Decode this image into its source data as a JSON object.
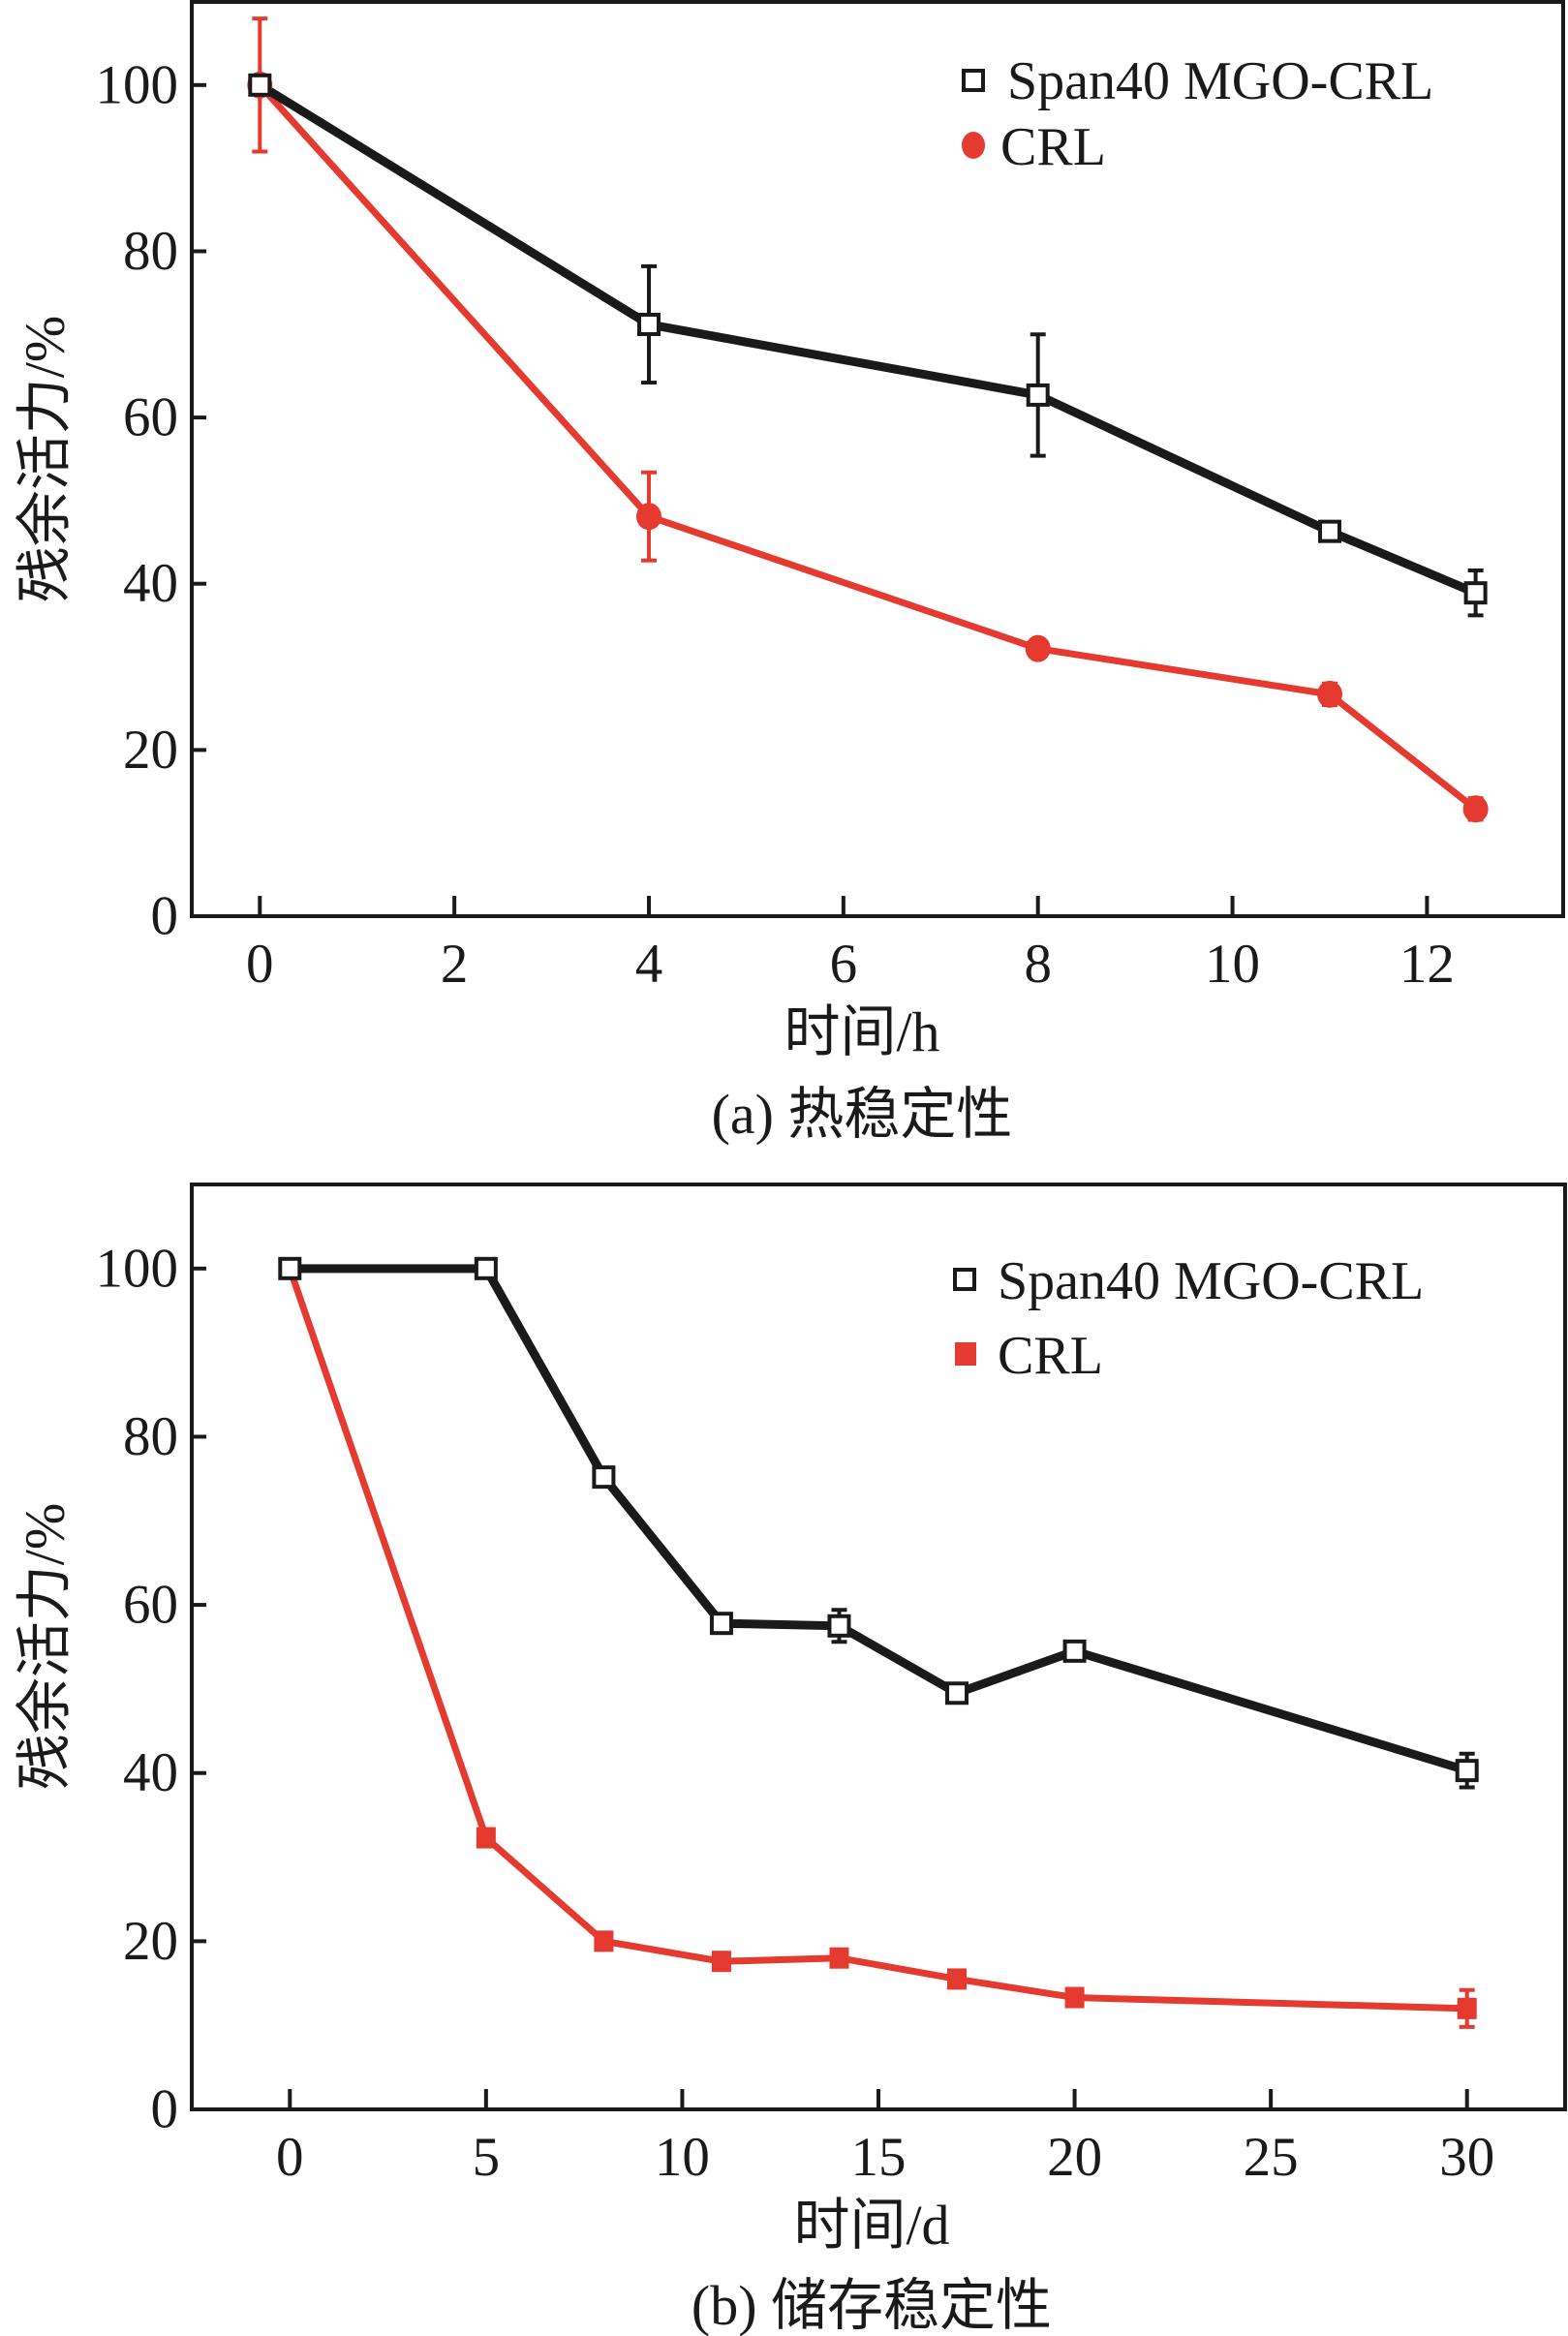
{
  "colors": {
    "span40": "#1a1a1a",
    "crl": "#e53a2f",
    "axis": "#1a1a1a",
    "background": "#ffffff"
  },
  "chart_data": [
    {
      "id": "a",
      "type": "line",
      "caption": "(a) 热稳定性",
      "title": "",
      "xlabel": "时间/h",
      "ylabel": "残余活力/%",
      "xlim": [
        -0.7,
        13.4
      ],
      "ylim": [
        0,
        110
      ],
      "xticks": [
        0,
        2,
        4,
        6,
        8,
        10,
        12
      ],
      "yticks": [
        0,
        20,
        40,
        60,
        80,
        100
      ],
      "grid": false,
      "legend_position": "top-right",
      "series": [
        {
          "name": "Span40 MGO-CRL",
          "marker": "open-square",
          "color_key": "span40",
          "x": [
            0,
            4,
            8,
            11,
            12.5
          ],
          "y": [
            100,
            71.2,
            62.7,
            46.3,
            38.9
          ],
          "error": [
            0,
            7.0,
            7.3,
            1.0,
            2.7
          ]
        },
        {
          "name": "CRL",
          "marker": "filled-circle",
          "color_key": "crl",
          "x": [
            0,
            4,
            8,
            11,
            12.5
          ],
          "y": [
            100,
            48.1,
            32.2,
            26.7,
            12.9
          ],
          "error": [
            8.0,
            5.3,
            0.6,
            1.3,
            1.3
          ]
        }
      ]
    },
    {
      "id": "b",
      "type": "line",
      "caption": "(b) 储存稳定性",
      "title": "",
      "xlabel": "时间/d",
      "ylabel": "残余活力/%",
      "xlim": [
        -2.5,
        32.5
      ],
      "ylim": [
        0,
        110
      ],
      "xticks": [
        0,
        5,
        10,
        15,
        20,
        25,
        30
      ],
      "yticks": [
        0,
        20,
        40,
        60,
        80,
        100
      ],
      "grid": false,
      "legend_position": "top-right",
      "series": [
        {
          "name": "Span40 MGO-CRL",
          "marker": "open-square",
          "color_key": "span40",
          "x": [
            0,
            5,
            8,
            11,
            14,
            17,
            20,
            30
          ],
          "y": [
            100,
            100,
            75.2,
            57.8,
            57.5,
            49.5,
            54.5,
            40.3
          ],
          "error": [
            0,
            0,
            0,
            0.6,
            1.9,
            0.5,
            0.5,
            2.0
          ]
        },
        {
          "name": "CRL",
          "marker": "filled-square",
          "color_key": "crl",
          "x": [
            0,
            5,
            8,
            11,
            14,
            17,
            20,
            30
          ],
          "y": [
            100,
            32.3,
            20.0,
            17.6,
            18.0,
            15.5,
            13.3,
            12.0
          ],
          "error": [
            0,
            0,
            0,
            0,
            0,
            0,
            0,
            2.2
          ]
        }
      ]
    }
  ]
}
